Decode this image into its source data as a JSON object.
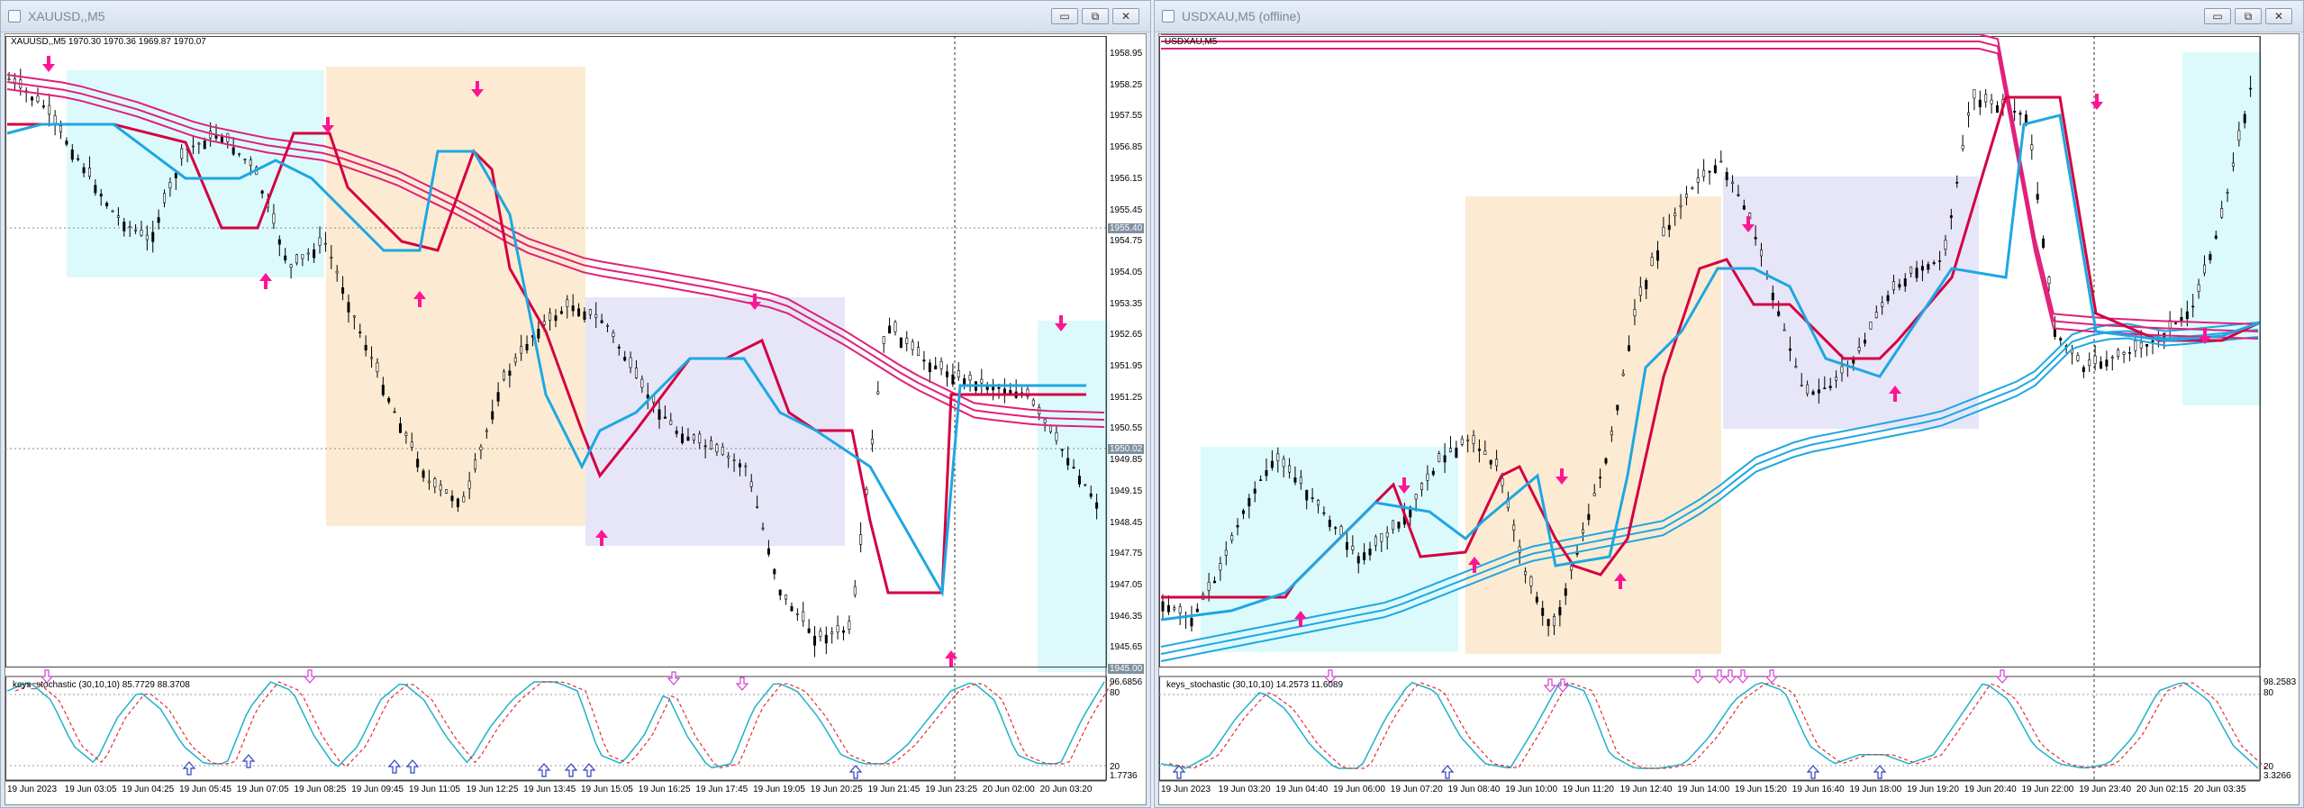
{
  "left": {
    "window_title": "XAUUSD,,M5",
    "chart_header": "XAUUSD,,M5  1970.30 1970.36 1969.87 1970.07",
    "indicator_label": "keys_stochastic (30,10,10) 85.7729 88.3708",
    "price_labels": [
      "1958.95",
      "1958.25",
      "1957.55",
      "1956.85",
      "1956.15",
      "1955.45",
      "1954.75",
      "1954.05",
      "1953.35",
      "1952.65",
      "1951.95",
      "1951.25",
      "1950.55",
      "1949.85",
      "1949.15",
      "1948.45",
      "1947.75",
      "1947.05",
      "1946.35",
      "1945.65"
    ],
    "highlight_prices": [
      "1955.40",
      "1950.02",
      "1945.00"
    ],
    "osc_labels": [
      "96.6856",
      "80",
      "20",
      "1.7736"
    ],
    "time_labels": [
      "19 Jun 2023",
      "19 Jun 03:05",
      "19 Jun 04:25",
      "19 Jun 05:45",
      "19 Jun 07:05",
      "19 Jun 08:25",
      "19 Jun 09:45",
      "19 Jun 11:05",
      "19 Jun 12:25",
      "19 Jun 13:45",
      "19 Jun 15:05",
      "19 Jun 16:25",
      "19 Jun 17:45",
      "19 Jun 19:05",
      "19 Jun 20:25",
      "19 Jun 21:45",
      "19 Jun 23:25",
      "20 Jun 02:00",
      "20 Jun 03:20"
    ]
  },
  "right": {
    "window_title": "USDXAU,M5 (offline)",
    "chart_header": "USDXAU,M5",
    "indicator_label": "keys_stochastic (30,10,10) 14.2573 11.6089",
    "osc_labels": [
      "98.2583",
      "80",
      "20",
      "3.3266"
    ],
    "time_labels": [
      "19 Jun 2023",
      "19 Jun 03:20",
      "19 Jun 04:40",
      "19 Jun 06:00",
      "19 Jun 07:20",
      "19 Jun 08:40",
      "19 Jun 10:00",
      "19 Jun 11:20",
      "19 Jun 12:40",
      "19 Jun 14:00",
      "19 Jun 15:20",
      "19 Jun 16:40",
      "19 Jun 18:00",
      "19 Jun 19:20",
      "19 Jun 20:40",
      "19 Jun 22:00",
      "19 Jun 23:40",
      "20 Jun 02:15",
      "20 Jun 03:35"
    ]
  },
  "window_buttons": {
    "minimize": "▭",
    "restore": "⧉",
    "close": "✕"
  },
  "colors": {
    "up_arrow": "#ff1493",
    "down_arrow": "#ff1493",
    "ma_red": "#d40042",
    "ma_blue": "#1ea7e1",
    "band_pink": "#e0207a",
    "band_blue": "#1ea7e1",
    "zone_cyan": "#dcfafc",
    "zone_orange": "#fcebd2",
    "zone_lavender": "#e6e6f8",
    "stoch_main": "#1fb2c8",
    "stoch_signal": "#e23030"
  }
}
